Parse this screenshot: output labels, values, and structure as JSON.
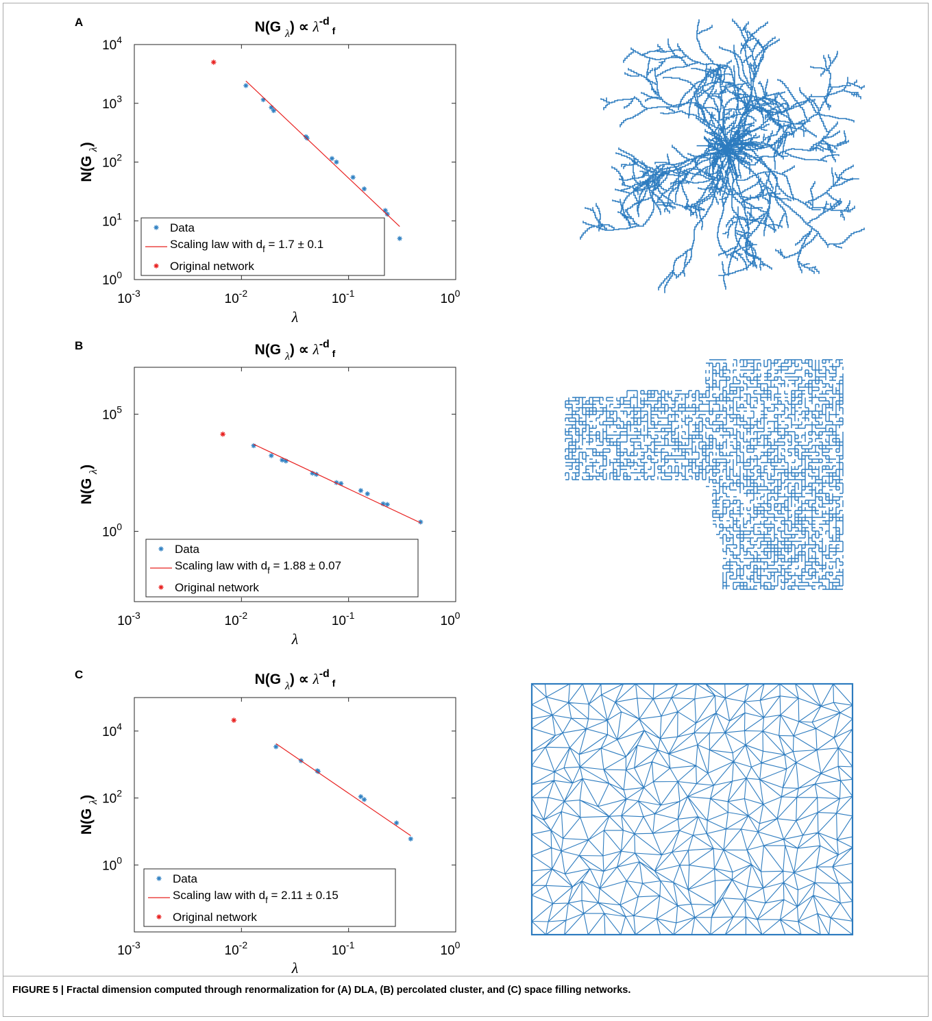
{
  "caption": "FIGURE 5 | Fractal dimension computed through renormalization for (A) DLA, (B) percolated cluster, and (C) space filling networks.",
  "colors": {
    "data": "#2f80c2",
    "fit": "#e8201f",
    "original": "#e8201f",
    "network": "#2c7bbf"
  },
  "chart_data": [
    {
      "panel": "A",
      "type": "scatter",
      "title": "N(G λ) ∝ λ^-d f",
      "xlabel": "λ",
      "ylabel": "N(G λ)",
      "xscale": "log",
      "yscale": "log",
      "xlim": [
        0.001,
        1
      ],
      "ylim": [
        1,
        10000
      ],
      "xticks": [
        {
          "base": "10",
          "exp": "-3"
        },
        {
          "base": "10",
          "exp": "-2"
        },
        {
          "base": "10",
          "exp": "-1"
        },
        {
          "base": "10",
          "exp": "0"
        }
      ],
      "yticks": [
        {
          "base": "10",
          "exp": "0"
        },
        {
          "base": "10",
          "exp": "1"
        },
        {
          "base": "10",
          "exp": "2"
        },
        {
          "base": "10",
          "exp": "3"
        },
        {
          "base": "10",
          "exp": "4"
        }
      ],
      "legend": {
        "placement": "bottom-left",
        "data": "Data",
        "fit": "Scaling law with",
        "fit_df": "d",
        "fit_df_sub": "f",
        "fit_value": "= 1.7  ±  0.1",
        "original": "Original network"
      },
      "series": [
        {
          "name": "Data",
          "points": [
            [
              0.011,
              2000
            ],
            [
              0.016,
              1150
            ],
            [
              0.019,
              850
            ],
            [
              0.02,
              750
            ],
            [
              0.04,
              270
            ],
            [
              0.041,
              255
            ],
            [
              0.07,
              115
            ],
            [
              0.077,
              100
            ],
            [
              0.11,
              55
            ],
            [
              0.14,
              35
            ],
            [
              0.22,
              15
            ],
            [
              0.23,
              13
            ],
            [
              0.3,
              5
            ]
          ]
        },
        {
          "name": "Scaling law with",
          "line": [
            [
              0.011,
              2400
            ],
            [
              0.3,
              8
            ]
          ]
        },
        {
          "name": "Original network",
          "points": [
            [
              0.0055,
              5000
            ]
          ]
        }
      ]
    },
    {
      "panel": "B",
      "type": "scatter",
      "title": "N(G λ) ∝ λ^-d f",
      "xlabel": "λ",
      "ylabel": "N(G λ)",
      "xscale": "log",
      "yscale": "log",
      "xlim": [
        0.001,
        1
      ],
      "ylim": [
        0.001,
        10000000
      ],
      "xticks": [
        {
          "base": "10",
          "exp": "-3"
        },
        {
          "base": "10",
          "exp": "-2"
        },
        {
          "base": "10",
          "exp": "-1"
        },
        {
          "base": "10",
          "exp": "0"
        }
      ],
      "yticks": [
        {
          "base": "10",
          "exp": "0"
        },
        {
          "base": "10",
          "exp": "5"
        }
      ],
      "legend": {
        "placement": "bottom-left",
        "data": "Data",
        "fit": "Scaling law with",
        "fit_df": "d",
        "fit_df_sub": "f",
        "fit_value": "= 1.88   ±  0.07",
        "original": "Original network"
      },
      "series": [
        {
          "name": "Data",
          "points": [
            [
              0.013,
              4500
            ],
            [
              0.019,
              1700
            ],
            [
              0.024,
              1100
            ],
            [
              0.026,
              1000
            ],
            [
              0.046,
              300
            ],
            [
              0.05,
              270
            ],
            [
              0.077,
              120
            ],
            [
              0.085,
              110
            ],
            [
              0.13,
              55
            ],
            [
              0.15,
              40
            ],
            [
              0.21,
              15
            ],
            [
              0.23,
              14
            ],
            [
              0.47,
              2.5
            ]
          ]
        },
        {
          "name": "Scaling law with",
          "line": [
            [
              0.013,
              5200
            ],
            [
              0.47,
              2.3
            ]
          ]
        },
        {
          "name": "Original network",
          "points": [
            [
              0.0067,
              14000
            ]
          ]
        }
      ]
    },
    {
      "panel": "C",
      "type": "scatter",
      "title": "N(G λ) ∝ λ^-d f",
      "xlabel": "λ",
      "ylabel": "N(G λ)",
      "xscale": "log",
      "yscale": "log",
      "xlim": [
        0.001,
        1
      ],
      "ylim": [
        0.01,
        100000
      ],
      "xticks": [
        {
          "base": "10",
          "exp": "-3"
        },
        {
          "base": "10",
          "exp": "-2"
        },
        {
          "base": "10",
          "exp": "-1"
        },
        {
          "base": "10",
          "exp": "0"
        }
      ],
      "yticks": [
        {
          "base": "10",
          "exp": "0"
        },
        {
          "base": "10",
          "exp": "2"
        },
        {
          "base": "10",
          "exp": "4"
        }
      ],
      "legend": {
        "placement": "bottom-left",
        "data": "Data",
        "fit": "Scaling law with",
        "fit_df": "d",
        "fit_df_sub": "f",
        "fit_value": "= 2.11  ± 0.15",
        "original": "Original network"
      },
      "series": [
        {
          "name": "Data",
          "points": [
            [
              0.021,
              3400
            ],
            [
              0.036,
              1300
            ],
            [
              0.051,
              650
            ],
            [
              0.052,
              620
            ],
            [
              0.13,
              110
            ],
            [
              0.14,
              90
            ],
            [
              0.28,
              18
            ],
            [
              0.38,
              6
            ]
          ]
        },
        {
          "name": "Scaling law with",
          "line": [
            [
              0.021,
              4200
            ],
            [
              0.38,
              7.5
            ]
          ]
        },
        {
          "name": "Original network",
          "points": [
            [
              0.0085,
              21000
            ]
          ]
        }
      ]
    }
  ]
}
